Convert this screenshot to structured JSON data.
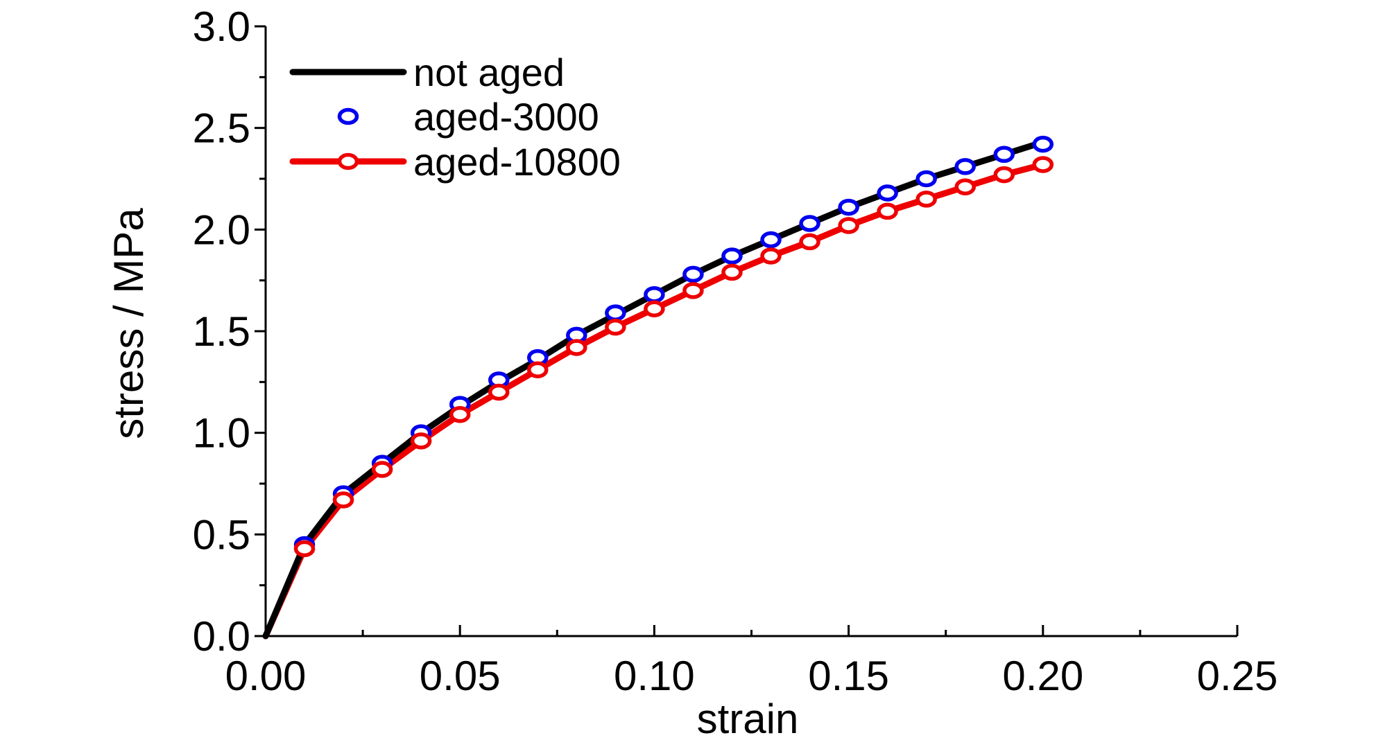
{
  "chart_data": {
    "type": "line",
    "title": "",
    "xlabel": "strain",
    "ylabel": "stress / MPa",
    "xlim": [
      0,
      0.25
    ],
    "ylim": [
      0,
      3.0
    ],
    "x_ticks": [
      0.0,
      0.05,
      0.1,
      0.15,
      0.2,
      0.25
    ],
    "x_tick_labels": [
      "0.00",
      "0.05",
      "0.10",
      "0.15",
      "0.20",
      "0.25"
    ],
    "y_ticks": [
      0.0,
      0.5,
      1.0,
      1.5,
      2.0,
      2.5,
      3.0
    ],
    "y_tick_labels": [
      "0.0",
      "0.5",
      "1.0",
      "1.5",
      "2.0",
      "2.5",
      "3.0"
    ],
    "grid": false,
    "legend_position": "top-left",
    "series": [
      {
        "name": "not aged",
        "color": "#000000",
        "style": "line",
        "x": [
          0,
          0.01,
          0.02,
          0.03,
          0.04,
          0.05,
          0.06,
          0.07,
          0.08,
          0.09,
          0.1,
          0.11,
          0.12,
          0.13,
          0.14,
          0.15,
          0.16,
          0.17,
          0.18,
          0.19,
          0.2
        ],
        "y": [
          0,
          0.45,
          0.7,
          0.85,
          1.0,
          1.13,
          1.25,
          1.36,
          1.48,
          1.58,
          1.68,
          1.78,
          1.87,
          1.95,
          2.03,
          2.11,
          2.18,
          2.25,
          2.31,
          2.37,
          2.43
        ]
      },
      {
        "name": "aged-3000",
        "color": "#0000ee",
        "style": "markers",
        "x": [
          0.01,
          0.02,
          0.03,
          0.04,
          0.05,
          0.06,
          0.07,
          0.08,
          0.09,
          0.1,
          0.11,
          0.12,
          0.13,
          0.14,
          0.15,
          0.16,
          0.17,
          0.18,
          0.19,
          0.2
        ],
        "y": [
          0.45,
          0.7,
          0.85,
          1.0,
          1.14,
          1.26,
          1.37,
          1.48,
          1.59,
          1.68,
          1.78,
          1.87,
          1.95,
          2.03,
          2.11,
          2.18,
          2.25,
          2.31,
          2.37,
          2.42
        ]
      },
      {
        "name": "aged-10800",
        "color": "#ee0000",
        "style": "line+markers",
        "x": [
          0,
          0.01,
          0.02,
          0.03,
          0.04,
          0.05,
          0.06,
          0.07,
          0.08,
          0.09,
          0.1,
          0.11,
          0.12,
          0.13,
          0.14,
          0.15,
          0.16,
          0.17,
          0.18,
          0.19,
          0.2
        ],
        "y": [
          0,
          0.43,
          0.67,
          0.82,
          0.96,
          1.09,
          1.2,
          1.31,
          1.42,
          1.52,
          1.61,
          1.7,
          1.79,
          1.87,
          1.94,
          2.02,
          2.09,
          2.15,
          2.21,
          2.27,
          2.32
        ]
      }
    ]
  }
}
